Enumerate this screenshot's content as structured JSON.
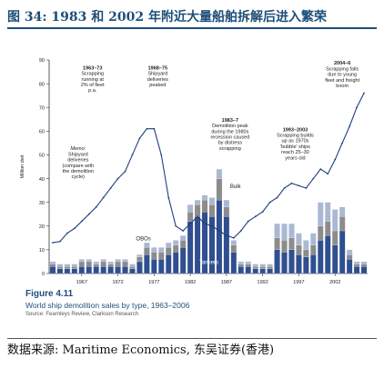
{
  "header": {
    "title": "图 34: 1983 和 2002 年附近大量船舶拆解后进入繁荣"
  },
  "figure": {
    "number": "Figure 4.11",
    "caption": "World ship demolition sales by type, 1963–2006",
    "source": "Source: Fearnleys Review, Clarkson Research"
  },
  "footer": {
    "source": "数据来源: Maritime Economics, 东吴证券(香港)"
  },
  "colors": {
    "tankers": "#2f4f8f",
    "bulk": "#8c8c8c",
    "obos": "#aab8d4",
    "line": "#1f3f7f",
    "axis": "#333333"
  },
  "chart_data": {
    "type": "bar",
    "ylabel": "Million dwt",
    "ylim": [
      0,
      90
    ],
    "yticks": [
      0,
      10,
      20,
      30,
      40,
      50,
      60,
      70,
      80,
      90
    ],
    "xtick_labels": [
      "1967",
      "1972",
      "1977",
      "1982",
      "1987",
      "1992",
      "1997",
      "2002"
    ],
    "categories": [
      "1963",
      "1964",
      "1965",
      "1966",
      "1967",
      "1968",
      "1969",
      "1970",
      "1971",
      "1972",
      "1973",
      "1974",
      "1975",
      "1976",
      "1977",
      "1978",
      "1979",
      "1980",
      "1981",
      "1982",
      "1983",
      "1984",
      "1985",
      "1986",
      "1987",
      "1988",
      "1989",
      "1990",
      "1991",
      "1992",
      "1993",
      "1994",
      "1995",
      "1996",
      "1997",
      "1998",
      "1999",
      "2000",
      "2001",
      "2002",
      "2003",
      "2004",
      "2005",
      "2006"
    ],
    "series": [
      {
        "name": "Tankers",
        "values": [
          3,
          2,
          2,
          2,
          3,
          3,
          3,
          3,
          3,
          3,
          3,
          2,
          5,
          8,
          6,
          6,
          8,
          9,
          11,
          22,
          24,
          26,
          24,
          31,
          24,
          9,
          3,
          3,
          2,
          2,
          2,
          10,
          9,
          10,
          8,
          7,
          8,
          14,
          16,
          12,
          18,
          6,
          3,
          3
        ]
      },
      {
        "name": "Bulk",
        "values": [
          1,
          1,
          1,
          1,
          2,
          2,
          1,
          2,
          1,
          2,
          2,
          1,
          2,
          3,
          3,
          3,
          3,
          3,
          3,
          4,
          5,
          5,
          5,
          9,
          4,
          3,
          1,
          1,
          1,
          1,
          1,
          5,
          5,
          5,
          4,
          3,
          4,
          6,
          6,
          6,
          6,
          2,
          1,
          1
        ]
      },
      {
        "name": "OBOs",
        "values": [
          1,
          1,
          1,
          1,
          1,
          1,
          1,
          1,
          1,
          1,
          1,
          1,
          1,
          2,
          2,
          2,
          2,
          2,
          2,
          3,
          2,
          2,
          3,
          4,
          3,
          2,
          1,
          1,
          1,
          1,
          1,
          6,
          7,
          6,
          5,
          4,
          5,
          10,
          8,
          9,
          4,
          2,
          1,
          1
        ]
      }
    ],
    "line": {
      "name": "Shipyard deliveries",
      "values": [
        13,
        13.5,
        17,
        19,
        22,
        25,
        28,
        32,
        36,
        40,
        43,
        50,
        57,
        61,
        61,
        50,
        32,
        20,
        18,
        21,
        24,
        21,
        20,
        18,
        16,
        15,
        18,
        22,
        24,
        26,
        30,
        32,
        36,
        38,
        37,
        36,
        40,
        44,
        42,
        48,
        55,
        62,
        70,
        76
      ]
    },
    "legend_labels": [
      "OBOs",
      "Bulk",
      "Tankers"
    ],
    "annotations": [
      {
        "text": [
          "1963–73",
          "Scrapping",
          "running at",
          "2% of fleet",
          "p.a."
        ]
      },
      {
        "text": [
          "1968–75",
          "Shipyard",
          "deliveries",
          "peaked"
        ]
      },
      {
        "text": [
          "1983–7",
          "Demolition peak",
          "during the 1980s",
          "recession caused",
          "by distress",
          "scrapping"
        ]
      },
      {
        "text": [
          "1993–2003",
          "Scrapping builds",
          "up as 1970s",
          "'bubble' ships",
          "reach 25–30",
          "years old"
        ]
      },
      {
        "text": [
          "2004–6",
          "Scrapping falls",
          "due to young",
          "fleet and freight",
          "boom"
        ]
      },
      {
        "text": [
          "Memo:",
          "Shipyard",
          "deliveries",
          "(compare with",
          "the demolition",
          "cycle)"
        ]
      }
    ]
  }
}
